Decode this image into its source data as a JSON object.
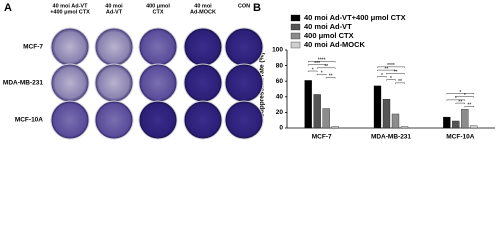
{
  "panel_a": {
    "label": "A",
    "columns": [
      [
        "40 moi Ad-VT",
        "+400 μmol CTX"
      ],
      [
        "40 moi",
        "Ad-VT"
      ],
      [
        "400 μmol",
        "CTX"
      ],
      [
        "40 moi",
        "Ad-MOCK"
      ],
      [
        "CON"
      ]
    ],
    "rows": [
      "MCF-7",
      "MDA-MB-231",
      "MCF-10A"
    ]
  },
  "chart_data": {
    "type": "bar",
    "panel_label": "B",
    "y_label": "Suppression rate (%)",
    "categories": [
      "MCF-7",
      "MDA-MB-231",
      "MCF-10A"
    ],
    "series": [
      {
        "name": "40 moi Ad-VT+400 μmol CTX",
        "color": "#000000",
        "values": [
          61,
          54,
          14
        ]
      },
      {
        "name": "40 moi Ad-VT",
        "color": "#555555",
        "values": [
          43,
          37,
          9
        ]
      },
      {
        "name": "400 μmol CTX",
        "color": "#8c8c8c",
        "values": [
          25,
          18,
          24
        ]
      },
      {
        "name": "40 moi Ad-MOCK",
        "color": "#cfcfcf",
        "values": [
          2,
          2,
          3
        ]
      }
    ],
    "ylim": [
      0,
      100
    ],
    "yticks": [
      0,
      20,
      40,
      60,
      80,
      100
    ],
    "brackets": [
      [
        {
          "series": [
            0,
            3
          ],
          "label": "****"
        },
        {
          "series": [
            0,
            2
          ],
          "label": "***"
        },
        {
          "series": [
            1,
            3
          ],
          "label": "**"
        },
        {
          "series": [
            0,
            1
          ],
          "label": "*"
        },
        {
          "series": [
            1,
            2
          ],
          "label": "*"
        },
        {
          "series": [
            2,
            3
          ],
          "label": "**"
        }
      ],
      [
        {
          "series": [
            0,
            3
          ],
          "label": "****"
        },
        {
          "series": [
            0,
            2
          ],
          "label": "**"
        },
        {
          "series": [
            1,
            3
          ],
          "label": "**"
        },
        {
          "series": [
            0,
            1
          ],
          "label": "*"
        },
        {
          "series": [
            1,
            2
          ],
          "label": "*"
        },
        {
          "series": [
            2,
            3
          ],
          "label": "**"
        }
      ],
      [
        {
          "series": [
            0,
            3
          ],
          "label": "*"
        },
        {
          "series": [
            1,
            3
          ],
          "label": "*"
        },
        {
          "series": [
            0,
            2
          ],
          "label": "*"
        },
        {
          "series": [
            1,
            2
          ],
          "label": "**"
        },
        {
          "series": [
            2,
            3
          ],
          "label": "**"
        }
      ]
    ]
  }
}
